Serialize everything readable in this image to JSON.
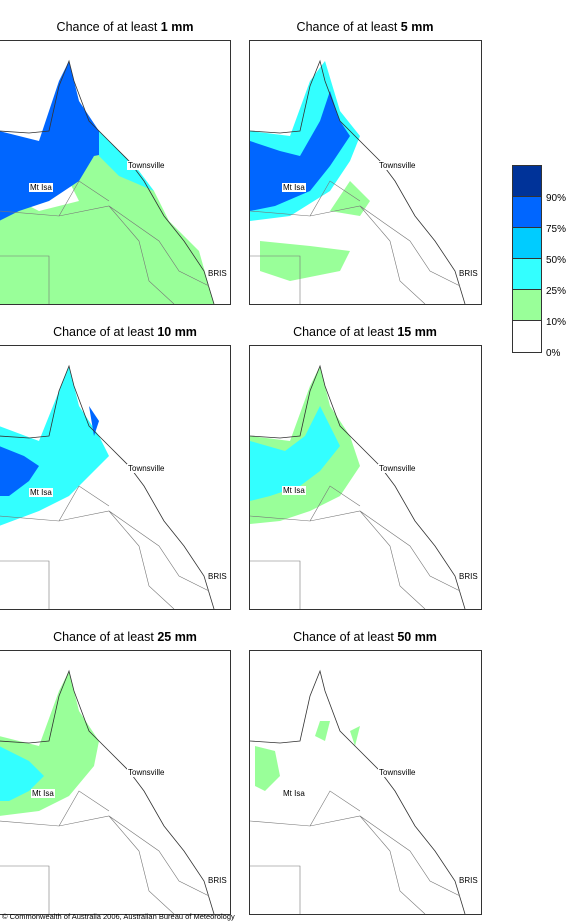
{
  "panels": [
    {
      "title_prefix": "Chance of at least ",
      "threshold": "1 mm"
    },
    {
      "title_prefix": "Chance of at least ",
      "threshold": "5 mm"
    },
    {
      "title_prefix": "Chance of at least ",
      "threshold": "10 mm"
    },
    {
      "title_prefix": "Chance of at least ",
      "threshold": "15 mm"
    },
    {
      "title_prefix": "Chance of at least ",
      "threshold": "25 mm"
    },
    {
      "title_prefix": "Chance of at least ",
      "threshold": "50 mm"
    }
  ],
  "places": {
    "townsville": "Townsville",
    "mt_isa": "Mt Isa",
    "brisbane": "BRIS"
  },
  "legend": {
    "labels": [
      "90%",
      "75%",
      "50%",
      "25%",
      "10%",
      "0%"
    ],
    "colors": [
      "#003399",
      "#0066ff",
      "#00ccff",
      "#33ffff",
      "#99ff99",
      "#ffffff"
    ]
  },
  "footer": "© Commonwealth of Australia 2006, Australian Bureau of Meteorology"
}
